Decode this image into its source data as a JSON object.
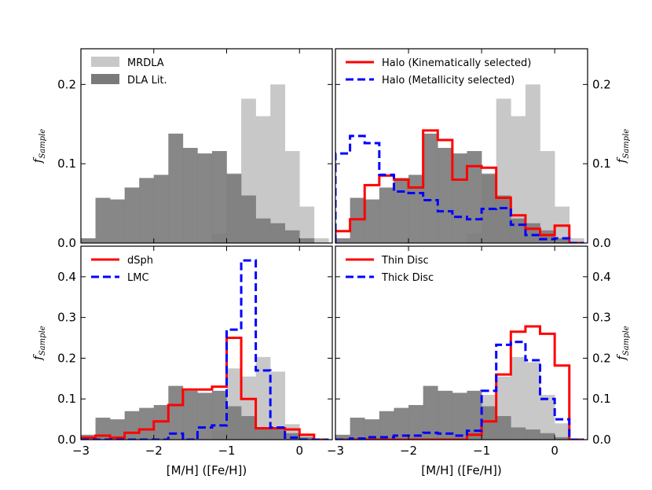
{
  "chart_data": [
    {
      "type": "histogram",
      "panel": "top-left",
      "xlim": [
        -3.0,
        0.45
      ],
      "ylim": [
        0.0,
        0.245
      ],
      "yticks": [
        "0.0",
        "0.1",
        "0.2"
      ],
      "yaxis_side": "left",
      "ylabel": "f",
      "ylabel_sub": "Sample",
      "xlabel": "",
      "legend_position": "top-left",
      "bin_edges": [
        -3.0,
        -2.8,
        -2.6,
        -2.4,
        -2.2,
        -2.0,
        -1.8,
        -1.6,
        -1.4,
        -1.2,
        -1.0,
        -0.8,
        -0.6,
        -0.4,
        -0.2,
        0.0,
        0.2,
        0.4
      ],
      "series": [
        {
          "name": "MRDLA",
          "style": "filled",
          "color": "#c8c8c8",
          "values": [
            0,
            0,
            0,
            0,
            0,
            0,
            0,
            0,
            0,
            0.012,
            0.088,
            0.182,
            0.16,
            0.2,
            0.116,
            0.046,
            0.006
          ]
        },
        {
          "name": "DLA Lit.",
          "style": "filled",
          "color": "#7a7a7a",
          "values": [
            0.006,
            0.057,
            0.055,
            0.07,
            0.082,
            0.086,
            0.138,
            0.12,
            0.113,
            0.116,
            0.087,
            0.06,
            0.031,
            0.025,
            0.016,
            0.006,
            0
          ]
        }
      ]
    },
    {
      "type": "histogram",
      "panel": "top-right",
      "xlim": [
        -3.0,
        0.45
      ],
      "ylim": [
        0.0,
        0.245
      ],
      "yticks": [
        "0.0",
        "0.1",
        "0.2"
      ],
      "yaxis_side": "right",
      "ylabel": "f",
      "ylabel_sub": "Sample",
      "xlabel": "",
      "legend_position": "top-left",
      "bin_edges": [
        -3.0,
        -2.8,
        -2.6,
        -2.4,
        -2.2,
        -2.0,
        -1.8,
        -1.6,
        -1.4,
        -1.2,
        -1.0,
        -0.8,
        -0.6,
        -0.4,
        -0.2,
        0.0,
        0.2,
        0.4
      ],
      "series": [
        {
          "name": "MRDLA",
          "style": "filled",
          "color": "#c8c8c8",
          "values": [
            0,
            0,
            0,
            0,
            0,
            0,
            0,
            0,
            0,
            0.012,
            0.088,
            0.182,
            0.16,
            0.2,
            0.116,
            0.046,
            0.006
          ]
        },
        {
          "name": "DLA Lit.",
          "style": "filled",
          "color": "#7a7a7a",
          "values": [
            0.006,
            0.057,
            0.055,
            0.07,
            0.082,
            0.086,
            0.138,
            0.12,
            0.113,
            0.116,
            0.087,
            0.06,
            0.031,
            0.025,
            0.016,
            0.006,
            0
          ]
        },
        {
          "name": "Halo (Kinematically selected)",
          "style": "step",
          "color": "#ff0000",
          "values": [
            0.015,
            0.03,
            0.073,
            0.085,
            0.08,
            0.07,
            0.142,
            0.13,
            0.08,
            0.097,
            0.095,
            0.057,
            0.035,
            0.018,
            0.01,
            0.022,
            0.0
          ]
        },
        {
          "name": "Halo (Metallicity selected)",
          "style": "dashed-step",
          "color": "#0000ff",
          "values": [
            0.113,
            0.135,
            0.126,
            0.086,
            0.065,
            0.063,
            0.054,
            0.04,
            0.033,
            0.03,
            0.043,
            0.044,
            0.023,
            0.01,
            0.005,
            0.006,
            0.0
          ]
        }
      ],
      "legend_entries": [
        "Halo (Kinematically selected)",
        "Halo (Metallicity selected)"
      ]
    },
    {
      "type": "histogram",
      "panel": "bottom-left",
      "xlim": [
        -3.0,
        0.45
      ],
      "ylim": [
        0.0,
        0.475
      ],
      "yticks": [
        "0.0",
        "0.1",
        "0.2",
        "0.3",
        "0.4"
      ],
      "xticks": [
        "−3",
        "−2",
        "−1",
        "0"
      ],
      "yaxis_side": "left",
      "ylabel": "f",
      "ylabel_sub": "Sample",
      "xlabel": "[M/H] ([Fe/H])",
      "legend_position": "top-left",
      "bin_edges": [
        -3.0,
        -2.8,
        -2.6,
        -2.4,
        -2.2,
        -2.0,
        -1.8,
        -1.6,
        -1.4,
        -1.2,
        -1.0,
        -0.8,
        -0.6,
        -0.4,
        -0.2,
        0.0,
        0.2,
        0.4
      ],
      "series": [
        {
          "name": "MRDLA",
          "style": "filled",
          "color": "#c8c8c8",
          "values": [
            0,
            0,
            0,
            0,
            0,
            0,
            0,
            0,
            0,
            0.022,
            0.175,
            0.155,
            0.203,
            0.167,
            0.038,
            0.012,
            0
          ]
        },
        {
          "name": "DLA Lit.",
          "style": "filled",
          "color": "#7a7a7a",
          "values": [
            0.012,
            0.054,
            0.05,
            0.07,
            0.078,
            0.085,
            0.132,
            0.12,
            0.115,
            0.12,
            0.082,
            0.058,
            0.03,
            0.025,
            0.016,
            0.006,
            0
          ]
        },
        {
          "name": "dSph",
          "style": "step",
          "color": "#ff0000",
          "values": [
            0.005,
            0.01,
            0.005,
            0.017,
            0.025,
            0.045,
            0.085,
            0.123,
            0.123,
            0.13,
            0.25,
            0.1,
            0.028,
            0.028,
            0.025,
            0.012,
            0.0
          ]
        },
        {
          "name": "LMC",
          "style": "dashed-step",
          "color": "#0000ff",
          "values": [
            0.0,
            0.0,
            0.0,
            0.0,
            0.0,
            0.0,
            0.015,
            0.0,
            0.03,
            0.035,
            0.27,
            0.44,
            0.17,
            0.03,
            0.005,
            0.0,
            0.0
          ]
        }
      ],
      "legend_entries": [
        "dSph",
        "LMC"
      ]
    },
    {
      "type": "histogram",
      "panel": "bottom-right",
      "xlim": [
        -3.0,
        0.45
      ],
      "ylim": [
        0.0,
        0.475
      ],
      "yticks": [
        "0.0",
        "0.1",
        "0.2",
        "0.3",
        "0.4"
      ],
      "xticks": [
        "−3",
        "−2",
        "−1",
        "0"
      ],
      "yaxis_side": "right",
      "ylabel": "f",
      "ylabel_sub": "Sample",
      "xlabel": "[M/H] ([Fe/H])",
      "legend_position": "top-left",
      "bin_edges": [
        -3.0,
        -2.8,
        -2.6,
        -2.4,
        -2.2,
        -2.0,
        -1.8,
        -1.6,
        -1.4,
        -1.2,
        -1.0,
        -0.8,
        -0.6,
        -0.4,
        -0.2,
        0.0,
        0.2,
        0.4
      ],
      "series": [
        {
          "name": "MRDLA",
          "style": "filled",
          "color": "#c8c8c8",
          "values": [
            0,
            0,
            0,
            0,
            0,
            0,
            0,
            0,
            0,
            0.022,
            0.11,
            0.155,
            0.203,
            0.19,
            0.11,
            0.04,
            0
          ]
        },
        {
          "name": "DLA Lit.",
          "style": "filled",
          "color": "#7a7a7a",
          "values": [
            0.012,
            0.054,
            0.05,
            0.07,
            0.078,
            0.085,
            0.132,
            0.12,
            0.115,
            0.12,
            0.082,
            0.058,
            0.03,
            0.025,
            0.016,
            0.006,
            0
          ]
        },
        {
          "name": "Thin Disc",
          "style": "step",
          "color": "#ff0000",
          "values": [
            0.0,
            0.0,
            0.0,
            0.0,
            0.0,
            0.0,
            0.0,
            0.0,
            0.0,
            0.012,
            0.045,
            0.16,
            0.265,
            0.278,
            0.26,
            0.182,
            0.0
          ]
        },
        {
          "name": "Thick Disc",
          "style": "dashed-step",
          "color": "#0000ff",
          "values": [
            0.0,
            0.003,
            0.006,
            0.006,
            0.01,
            0.01,
            0.017,
            0.015,
            0.01,
            0.022,
            0.12,
            0.233,
            0.24,
            0.195,
            0.1,
            0.05,
            0.0
          ]
        }
      ],
      "legend_entries": [
        "Thin Disc",
        "Thick Disc"
      ]
    }
  ]
}
